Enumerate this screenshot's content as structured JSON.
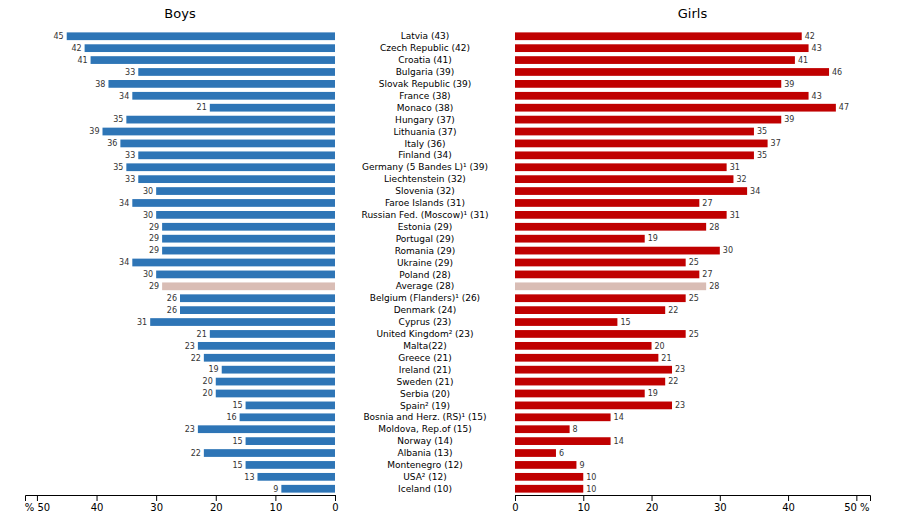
{
  "chart_data": [
    {
      "type": "bar",
      "orientation": "horizontal",
      "title": "Boys",
      "categories": [
        "Latvia (43)",
        "Czech Republic (42)",
        "Croatia (41)",
        "Bulgaria (39)",
        "Slovak Republic (39)",
        "France (38)",
        "Monaco (38)",
        "Hungary (37)",
        "Lithuania (37)",
        "Italy (36)",
        "Finland (34)",
        "Germany (5 Bandes L)¹ (39)",
        "Liechtenstein (32)",
        "Slovenia (32)",
        "Faroe Islands (31)",
        "Russian Fed. (Moscow)¹ (31)",
        "Estonia (29)",
        "Portugal (29)",
        "Romania (29)",
        "Ukraine (29)",
        "Poland (28)",
        "Average (28)",
        "Belgium (Flanders)¹ (26)",
        "Denmark (24)",
        "Cyprus (23)",
        "United Kingdom² (23)",
        "Malta(22)",
        "Greece (21)",
        "Ireland (21)",
        "Sweden (21)",
        "Serbia (20)",
        "Spain² (19)",
        "Bosnia and Herz. (RS)¹ (15)",
        "Moldova, Rep.of (15)",
        "Norway (14)",
        "Albania (13)",
        "Montenegro (12)",
        "USA² (12)",
        "Iceland (10)"
      ],
      "values": [
        45,
        42,
        41,
        33,
        38,
        34,
        21,
        35,
        39,
        36,
        33,
        35,
        33,
        30,
        34,
        30,
        29,
        29,
        29,
        34,
        30,
        29,
        26,
        26,
        31,
        21,
        23,
        22,
        19,
        20,
        20,
        15,
        16,
        23,
        15,
        22,
        15,
        13,
        9
      ],
      "colors": [
        "#2E75B6",
        "#2E75B6",
        "#2E75B6",
        "#2E75B6",
        "#2E75B6",
        "#2E75B6",
        "#2E75B6",
        "#2E75B6",
        "#2E75B6",
        "#2E75B6",
        "#2E75B6",
        "#2E75B6",
        "#2E75B6",
        "#2E75B6",
        "#2E75B6",
        "#2E75B6",
        "#2E75B6",
        "#2E75B6",
        "#2E75B6",
        "#2E75B6",
        "#2E75B6",
        "#D9BDB5",
        "#2E75B6",
        "#2E75B6",
        "#2E75B6",
        "#2E75B6",
        "#2E75B6",
        "#2E75B6",
        "#2E75B6",
        "#2E75B6",
        "#2E75B6",
        "#2E75B6",
        "#2E75B6",
        "#2E75B6",
        "#2E75B6",
        "#2E75B6",
        "#2E75B6",
        "#2E75B6",
        "#2E75B6"
      ],
      "xlim": [
        52,
        0
      ],
      "xticks": [
        0,
        10,
        20,
        30,
        40,
        {
          "value": 50,
          "label": "% 50"
        }
      ],
      "data_labels": true
    },
    {
      "type": "bar",
      "orientation": "horizontal",
      "title": "Girls",
      "categories": [
        "Latvia (43)",
        "Czech Republic (42)",
        "Croatia (41)",
        "Bulgaria (39)",
        "Slovak Republic (39)",
        "France (38)",
        "Monaco (38)",
        "Hungary (37)",
        "Lithuania (37)",
        "Italy (36)",
        "Finland (34)",
        "Germany (5 Bandes L)¹ (39)",
        "Liechtenstein (32)",
        "Slovenia (32)",
        "Faroe Islands (31)",
        "Russian Fed. (Moscow)¹ (31)",
        "Estonia (29)",
        "Portugal (29)",
        "Romania (29)",
        "Ukraine (29)",
        "Poland (28)",
        "Average (28)",
        "Belgium (Flanders)¹ (26)",
        "Denmark (24)",
        "Cyprus (23)",
        "United Kingdom² (23)",
        "Malta(22)",
        "Greece (21)",
        "Ireland (21)",
        "Sweden (21)",
        "Serbia (20)",
        "Spain² (19)",
        "Bosnia and Herz. (RS)¹ (15)",
        "Moldova, Rep.of (15)",
        "Norway (14)",
        "Albania (13)",
        "Montenegro (12)",
        "USA² (12)",
        "Iceland (10)"
      ],
      "values": [
        42,
        43,
        41,
        46,
        39,
        43,
        47,
        39,
        35,
        37,
        35,
        31,
        32,
        34,
        27,
        31,
        28,
        19,
        30,
        25,
        27,
        28,
        25,
        22,
        15,
        25,
        20,
        21,
        23,
        22,
        19,
        23,
        14,
        8,
        14,
        6,
        9,
        10,
        10
      ],
      "colors": [
        "#C00000",
        "#C00000",
        "#C00000",
        "#C00000",
        "#C00000",
        "#C00000",
        "#C00000",
        "#C00000",
        "#C00000",
        "#C00000",
        "#C00000",
        "#C00000",
        "#C00000",
        "#C00000",
        "#C00000",
        "#C00000",
        "#C00000",
        "#C00000",
        "#C00000",
        "#C00000",
        "#C00000",
        "#D9BDB5",
        "#C00000",
        "#C00000",
        "#C00000",
        "#C00000",
        "#C00000",
        "#C00000",
        "#C00000",
        "#C00000",
        "#C00000",
        "#C00000",
        "#C00000",
        "#C00000",
        "#C00000",
        "#C00000",
        "#C00000",
        "#C00000",
        "#C00000"
      ],
      "xlim": [
        0,
        52
      ],
      "xticks": [
        0,
        10,
        20,
        30,
        40,
        {
          "value": 50,
          "label": "50 %"
        }
      ],
      "data_labels": true
    }
  ]
}
